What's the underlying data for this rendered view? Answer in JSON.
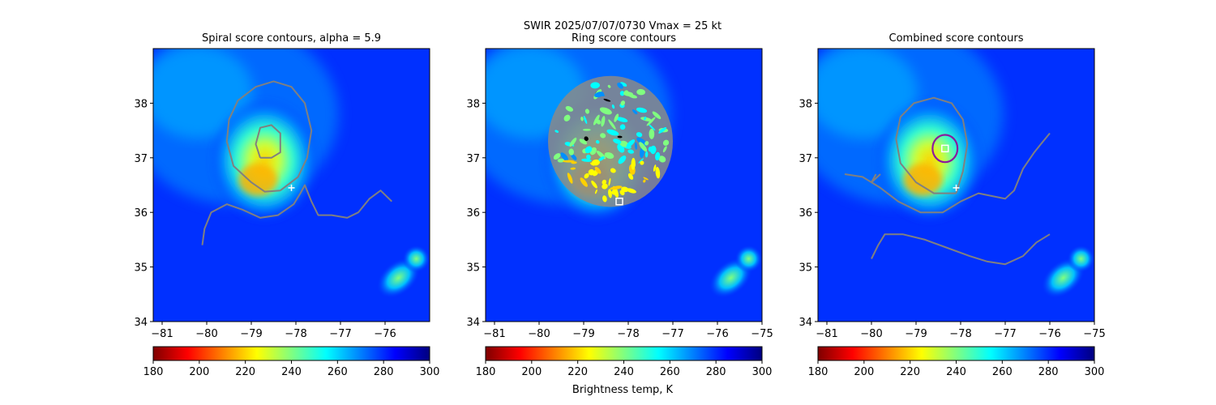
{
  "figure": {
    "suptitle_line1": "SWIR  2025/07/07/0730    Vmax = 25 kt",
    "colorbar_label": "Brightness temp, K"
  },
  "colormap": {
    "name": "jet_r",
    "stops": [
      "#7f0000",
      "#ff0000",
      "#ff8000",
      "#ffff00",
      "#80ff80",
      "#00ffff",
      "#0080ff",
      "#0000ff",
      "#00007f"
    ],
    "range": [
      180,
      300
    ],
    "ticks": [
      "180",
      "200",
      "220",
      "240",
      "260",
      "280",
      "300"
    ]
  },
  "colors": {
    "contour": "#808080",
    "combined_circle": "#8b1a9e",
    "marker": "#ffffff"
  },
  "chart_data": [
    {
      "type": "heatmap",
      "title": "Spiral score contours, alpha =  5.9",
      "xlim": [
        -81.2,
        -75
      ],
      "ylim": [
        34,
        39
      ],
      "xticks": [
        -81,
        -80,
        -79,
        -78,
        -77,
        -76
      ],
      "xtick_labels": [
        "−81",
        "−80",
        "−79",
        "−78",
        "−77",
        "−76"
      ],
      "yticks": [
        34,
        35,
        36,
        37,
        38
      ],
      "ytick_labels": [
        "34",
        "35",
        "36",
        "37",
        "38"
      ],
      "marker": {
        "shape": "plus",
        "lon": -78.1,
        "lat": 36.45
      },
      "contours": [
        [
          [
            -78.8,
            37.0
          ],
          [
            -78.9,
            37.25
          ],
          [
            -78.8,
            37.55
          ],
          [
            -78.55,
            37.6
          ],
          [
            -78.35,
            37.45
          ],
          [
            -78.35,
            37.1
          ],
          [
            -78.55,
            37.0
          ],
          [
            -78.8,
            37.0
          ]
        ],
        [
          [
            -78.35,
            36.4
          ],
          [
            -78.7,
            36.38
          ],
          [
            -79.0,
            36.55
          ],
          [
            -79.4,
            36.85
          ],
          [
            -79.55,
            37.3
          ],
          [
            -79.5,
            37.7
          ],
          [
            -79.3,
            38.05
          ],
          [
            -78.9,
            38.3
          ],
          [
            -78.5,
            38.4
          ],
          [
            -78.1,
            38.3
          ],
          [
            -77.8,
            38.0
          ],
          [
            -77.65,
            37.5
          ],
          [
            -77.75,
            37.0
          ],
          [
            -77.95,
            36.65
          ],
          [
            -78.35,
            36.4
          ]
        ],
        [
          [
            -80.1,
            35.4
          ],
          [
            -80.05,
            35.7
          ],
          [
            -79.9,
            36.0
          ],
          [
            -79.55,
            36.15
          ],
          [
            -79.2,
            36.05
          ],
          [
            -78.8,
            35.9
          ],
          [
            -78.4,
            35.95
          ],
          [
            -78.05,
            36.15
          ],
          [
            -77.9,
            36.35
          ],
          [
            -77.8,
            36.5
          ],
          [
            -77.65,
            36.2
          ],
          [
            -77.5,
            35.95
          ],
          [
            -77.2,
            35.95
          ],
          [
            -76.85,
            35.9
          ],
          [
            -76.6,
            36.0
          ],
          [
            -76.35,
            36.25
          ],
          [
            -76.1,
            36.4
          ],
          [
            -75.85,
            36.2
          ]
        ]
      ]
    },
    {
      "type": "heatmap",
      "title": "Ring score contours",
      "xlim": [
        -81.2,
        -75
      ],
      "ylim": [
        34,
        39
      ],
      "xticks": [
        -81,
        -80,
        -79,
        -78,
        -77,
        -76,
        -75
      ],
      "xtick_labels": [
        "−81",
        "−80",
        "−79",
        "−78",
        "−77",
        "−76",
        "−75"
      ],
      "yticks": [
        34,
        35,
        36,
        37,
        38
      ],
      "ytick_labels": [
        "34",
        "35",
        "36",
        "37",
        "38"
      ],
      "marker": {
        "shape": "square",
        "lon": -78.2,
        "lat": 36.2
      },
      "ring_region": {
        "center_lon": -78.4,
        "center_lat": 37.3,
        "radius_lon": 1.4,
        "radius_lat": 1.2
      }
    },
    {
      "type": "heatmap",
      "title": "Combined score contours",
      "xlim": [
        -81.2,
        -75
      ],
      "ylim": [
        34,
        39
      ],
      "xticks": [
        -81,
        -80,
        -79,
        -78,
        -77,
        -76,
        -75
      ],
      "xtick_labels": [
        "−81",
        "−80",
        "−79",
        "−78",
        "−77",
        "−76",
        "−75"
      ],
      "yticks": [
        34,
        35,
        36,
        37,
        38
      ],
      "ytick_labels": [
        "34",
        "35",
        "36",
        "37",
        "38"
      ],
      "marker": {
        "shape": "plus",
        "lon": -78.1,
        "lat": 36.45
      },
      "center_square": {
        "lon": -78.35,
        "lat": 37.17
      },
      "circle": {
        "lon": -78.35,
        "lat": 37.17,
        "r_lon": 0.28,
        "r_lat": 0.25
      },
      "contours": [
        [
          [
            -78.1,
            36.35
          ],
          [
            -78.6,
            36.35
          ],
          [
            -79.0,
            36.55
          ],
          [
            -79.35,
            36.9
          ],
          [
            -79.45,
            37.35
          ],
          [
            -79.35,
            37.75
          ],
          [
            -79.05,
            38.0
          ],
          [
            -78.6,
            38.1
          ],
          [
            -78.2,
            38.0
          ],
          [
            -77.95,
            37.7
          ],
          [
            -77.85,
            37.25
          ],
          [
            -77.95,
            36.75
          ],
          [
            -78.1,
            36.35
          ]
        ],
        [
          [
            -80.6,
            36.7
          ],
          [
            -80.2,
            36.65
          ],
          [
            -79.8,
            36.45
          ],
          [
            -79.4,
            36.2
          ],
          [
            -78.9,
            36.0
          ],
          [
            -78.4,
            36.0
          ],
          [
            -78.0,
            36.2
          ],
          [
            -77.6,
            36.35
          ],
          [
            -77.3,
            36.3
          ],
          [
            -77.0,
            36.25
          ],
          [
            -76.8,
            36.4
          ],
          [
            -76.6,
            36.8
          ],
          [
            -76.35,
            37.1
          ],
          [
            -76.2,
            37.25
          ],
          [
            -76.0,
            37.45
          ]
        ],
        [
          [
            -80.0,
            35.15
          ],
          [
            -79.85,
            35.4
          ],
          [
            -79.7,
            35.6
          ],
          [
            -79.3,
            35.6
          ],
          [
            -78.8,
            35.5
          ],
          [
            -78.3,
            35.35
          ],
          [
            -77.8,
            35.2
          ],
          [
            -77.4,
            35.1
          ],
          [
            -77.0,
            35.05
          ],
          [
            -76.6,
            35.2
          ],
          [
            -76.3,
            35.45
          ],
          [
            -76.0,
            35.6
          ]
        ],
        [
          [
            -80.0,
            36.55
          ],
          [
            -79.8,
            36.7
          ]
        ],
        [
          [
            -80.0,
            36.55
          ],
          [
            -79.9,
            36.7
          ]
        ],
        [
          [
            -80.0,
            36.55
          ],
          [
            -80.0,
            36.55
          ]
        ],
        [
          [
            -80.05,
            36.55
          ],
          [
            -80.05,
            36.55
          ]
        ]
      ]
    }
  ]
}
